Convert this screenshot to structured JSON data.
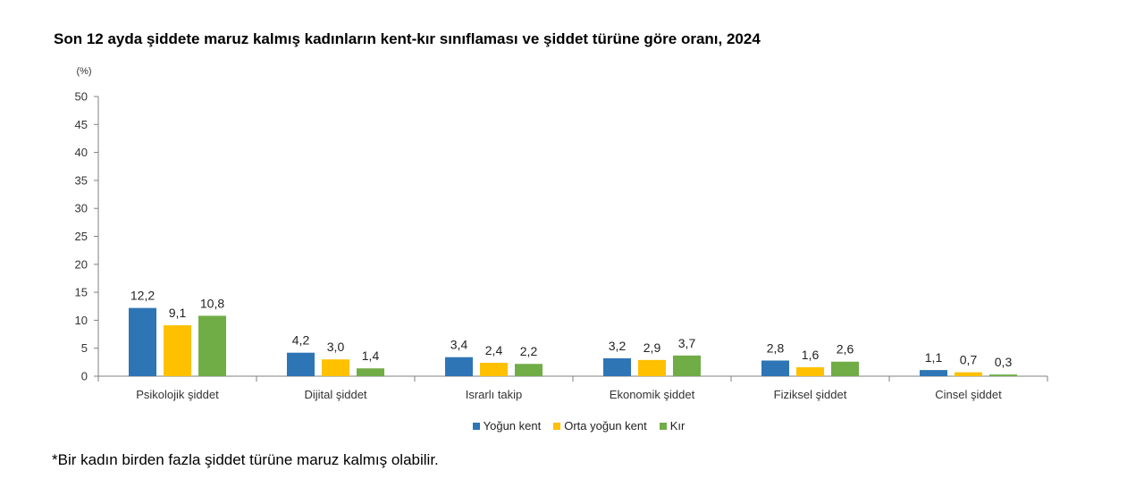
{
  "title": "Son 12 ayda şiddete maruz kalmış kadınların kent-kır sınıflaması ve şiddet türüne göre oranı, 2024",
  "footnote": "*Bir kadın birden fazla şiddet türüne maruz kalmış olabilir.",
  "colors": {
    "Yoğun kent": "#2e75b6",
    "Orta yoğun kent": "#ffc000",
    "Kır": "#70ad47"
  },
  "chart_data": {
    "type": "bar",
    "title": "Son 12 ayda şiddete maruz kalmış kadınların kent-kır sınıflaması ve şiddet türüne göre oranı, 2024",
    "ylabel": "(%)",
    "xlabel": "",
    "ylim": [
      0,
      50
    ],
    "yticks": [
      0,
      5,
      10,
      15,
      20,
      25,
      30,
      35,
      40,
      45,
      50
    ],
    "grid": false,
    "legend": "bottom",
    "categories": [
      "Psikolojik şiddet",
      "Dijital şiddet",
      "Israrlı takip",
      "Ekonomik şiddet",
      "Fiziksel şiddet",
      "Cinsel şiddet"
    ],
    "series": [
      {
        "name": "Yoğun kent",
        "values": [
          12.2,
          4.2,
          3.4,
          3.2,
          2.8,
          1.1
        ]
      },
      {
        "name": "Orta yoğun kent",
        "values": [
          9.1,
          3.0,
          2.4,
          2.9,
          1.6,
          0.7
        ]
      },
      {
        "name": "Kır",
        "values": [
          10.8,
          1.4,
          2.2,
          3.7,
          2.6,
          0.3
        ]
      }
    ]
  }
}
